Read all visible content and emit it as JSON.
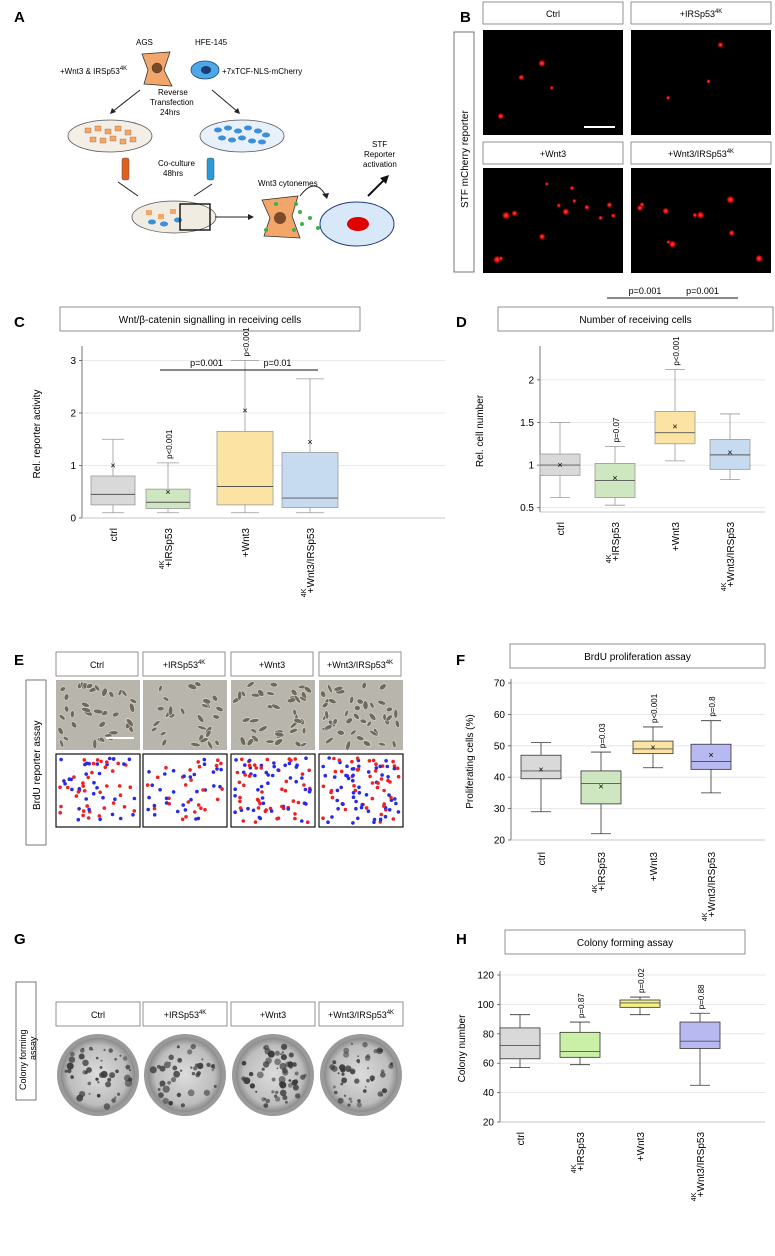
{
  "panel_letters": {
    "A": "A",
    "B": "B",
    "C": "C",
    "D": "D",
    "E": "E",
    "F": "F",
    "G": "G",
    "H": "H"
  },
  "panelA": {
    "ags": "AGS",
    "hfe": "HFE-145",
    "left_treat": "+Wnt3 & IRSp53",
    "left_treat_sup": "4K",
    "right_treat": "+7xTCF-NLS-mCherry",
    "rt1": "Reverse",
    "rt2": "Transfection",
    "rt3": "24hrs",
    "cc1": "Co-culture",
    "cc2": "48hrs",
    "cytonemes": "Wnt3 cytonemes",
    "stf1": "STF",
    "stf2": "Reporter",
    "stf3": "activation"
  },
  "panelB": {
    "side_label": "STF mCherry reporter",
    "ctrl": "Ctrl",
    "irsp": "+IRSp53",
    "sup": "4K",
    "wnt3": "+Wnt3",
    "wnt3irsp": "+Wnt3/IRSp53"
  },
  "cats": {
    "ctrl": "ctrl",
    "irsp": "+IRSp53",
    "wnt3": "+Wnt3",
    "combo": "+Wnt3/IRSp53",
    "sup": "4K"
  },
  "panelE": {
    "side_label": "BrdU reporter assay",
    "ctrl": "Ctrl",
    "irsp": "+IRSp53",
    "sup": "4K",
    "wnt3": "+Wnt3",
    "wnt3irsp": "+Wnt3/IRSp53"
  },
  "panelG": {
    "side_label1": "Colony forming",
    "side_label2": "assay",
    "ctrl": "Ctrl",
    "irsp": "+IRSp53",
    "sup": "4K",
    "wnt3": "+Wnt3",
    "wnt3irsp": "+Wnt3/IRSp53"
  },
  "colors": {
    "ctrl": "#d9d9d9",
    "irsp_C": "#cfe7c0",
    "wnt3_C": "#fbe3a3",
    "combo_C": "#c7dbf0",
    "irsp_H": "#c9f0a6",
    "wnt3_H": "#f4f088",
    "combo_H": "#b9b9f2",
    "mcherry": "#ff2020",
    "brdu_red": "#ee2222",
    "brdu_blue": "#2a2ae6"
  },
  "chart_data": [
    {
      "type": "box",
      "panel": "C",
      "title": "Wnt/β-catenin signalling in receiving cells",
      "ylabel": "Rel. reporter activity",
      "ylim": [
        0,
        3.2
      ],
      "yticks": [
        0,
        1,
        2,
        3
      ],
      "categories": [
        "ctrl",
        "+IRSp53 4K",
        "+Wnt3",
        "+Wnt3/IRSp53 4K"
      ],
      "boxes": [
        {
          "min": 0.1,
          "q1": 0.25,
          "median": 0.45,
          "q3": 0.8,
          "max": 1.5,
          "mean": 1.0
        },
        {
          "min": 0.1,
          "q1": 0.18,
          "median": 0.3,
          "q3": 0.55,
          "max": 1.05,
          "mean": 0.5
        },
        {
          "min": 0.1,
          "q1": 0.25,
          "median": 0.6,
          "q3": 1.65,
          "max": 3.0,
          "mean": 2.05
        },
        {
          "min": 0.1,
          "q1": 0.2,
          "median": 0.38,
          "q3": 1.25,
          "max": 2.65,
          "mean": 1.45
        }
      ],
      "annotations": [
        {
          "box": 1,
          "text": "p<0.001"
        },
        {
          "box": 2,
          "text": "p<0.001"
        }
      ],
      "brackets": [
        {
          "from": 1,
          "to": 2,
          "text": "p=0.001"
        },
        {
          "from": 2,
          "to": 3,
          "text": "p=0.01"
        }
      ]
    },
    {
      "type": "box",
      "panel": "D",
      "title": "Number of receiving cells",
      "ylabel": "Rel. cell number",
      "ylim": [
        0.45,
        2.35
      ],
      "yticks": [
        0.5,
        1,
        1.5,
        2
      ],
      "categories": [
        "ctrl",
        "+IRSp53 4K",
        "+Wnt3",
        "+Wnt3/IRSp53 4K"
      ],
      "boxes": [
        {
          "min": 0.62,
          "q1": 0.88,
          "median": 1.0,
          "q3": 1.13,
          "max": 1.5,
          "mean": 1.0
        },
        {
          "min": 0.53,
          "q1": 0.62,
          "median": 0.82,
          "q3": 1.02,
          "max": 1.22,
          "mean": 0.85
        },
        {
          "min": 1.05,
          "q1": 1.25,
          "median": 1.38,
          "q3": 1.63,
          "max": 2.12,
          "mean": 1.45
        },
        {
          "min": 0.83,
          "q1": 0.95,
          "median": 1.12,
          "q3": 1.3,
          "max": 1.6,
          "mean": 1.15
        }
      ],
      "annotations": [
        {
          "box": 1,
          "text": "p=0.07"
        },
        {
          "box": 2,
          "text": "p<0.001"
        }
      ],
      "brackets": [
        {
          "from": 1,
          "to": 2,
          "text": "p=0.001"
        },
        {
          "from": 2,
          "to": 3,
          "text": "p=0.001"
        }
      ]
    },
    {
      "type": "box",
      "panel": "F",
      "title": "BrdU proliferation assay",
      "ylabel": "Proliferating cells (%)",
      "ylim": [
        20,
        70
      ],
      "yticks": [
        20,
        30,
        40,
        50,
        60,
        70
      ],
      "categories": [
        "ctrl",
        "+IRSp53 4K",
        "+Wnt3",
        "+Wnt3/IRSp53 4K"
      ],
      "boxes": [
        {
          "min": 29,
          "q1": 39.5,
          "median": 42,
          "q3": 47,
          "max": 51,
          "mean": 42.5
        },
        {
          "min": 22,
          "q1": 31.5,
          "median": 38,
          "q3": 42,
          "max": 48,
          "mean": 37
        },
        {
          "min": 43,
          "q1": 47.5,
          "median": 49,
          "q3": 51.5,
          "max": 56,
          "mean": 49.5
        },
        {
          "min": 35,
          "q1": 42.5,
          "median": 45,
          "q3": 50.5,
          "max": 58,
          "mean": 47
        }
      ],
      "annotations": [
        {
          "box": 1,
          "text": "p=0.03"
        },
        {
          "box": 2,
          "text": "p<0.001"
        },
        {
          "box": 3,
          "text": "p=0.8"
        }
      ],
      "brackets": []
    },
    {
      "type": "box",
      "panel": "H",
      "title": "Colony forming assay",
      "ylabel": "Colony number",
      "ylim": [
        20,
        120
      ],
      "yticks": [
        20,
        40,
        60,
        80,
        100,
        120
      ],
      "categories": [
        "ctrl",
        "+IRSp53 4K",
        "+Wnt3",
        "+Wnt3/IRSp53 4K"
      ],
      "boxes": [
        {
          "min": 57,
          "q1": 63,
          "median": 72,
          "q3": 84,
          "max": 93,
          "mean": null
        },
        {
          "min": 59,
          "q1": 64,
          "median": 68,
          "q3": 81,
          "max": 88,
          "mean": null
        },
        {
          "min": 93,
          "q1": 98,
          "median": 101,
          "q3": 103,
          "max": 105,
          "mean": null
        },
        {
          "min": 45,
          "q1": 70,
          "median": 75,
          "q3": 88,
          "max": 94,
          "mean": null
        }
      ],
      "annotations": [
        {
          "box": 1,
          "text": "p=0.87"
        },
        {
          "box": 2,
          "text": "p=0.02"
        },
        {
          "box": 3,
          "text": "p=0.88"
        }
      ],
      "brackets": []
    }
  ]
}
